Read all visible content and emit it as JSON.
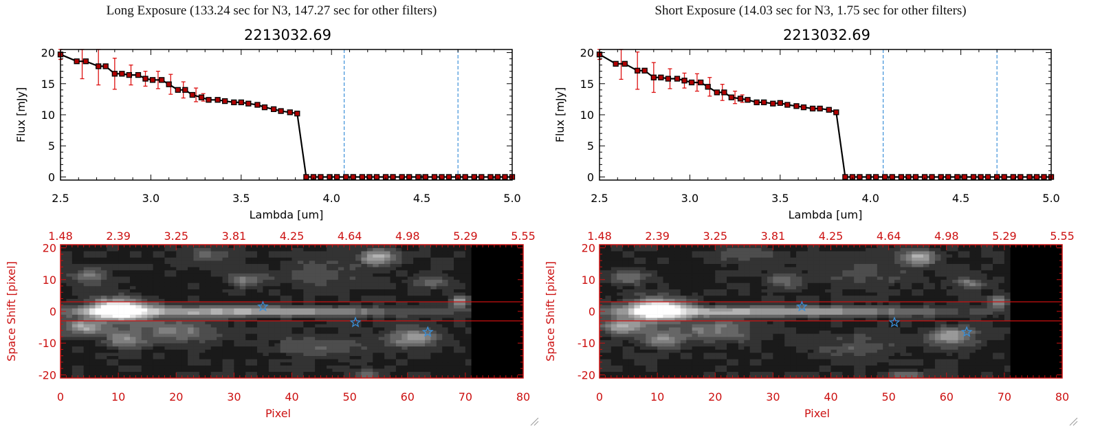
{
  "panels": [
    {
      "header": "Long Exposure (133.24 sec for N3, 147.27 sec for other filters)",
      "chart_data": [
        {
          "type": "line",
          "title": "2213032.69",
          "xlabel": "Lambda [um]",
          "ylabel": "Flux [mJy]",
          "xlim": [
            2.5,
            5.0
          ],
          "ylim": [
            -0.5,
            20.5
          ],
          "xticks": [
            "2.5",
            "3.0",
            "3.5",
            "4.0",
            "4.5",
            "5.0"
          ],
          "yticks": [
            "0",
            "5",
            "10",
            "15",
            "20"
          ],
          "vlines": [
            4.07,
            4.7
          ],
          "series": [
            {
              "x": [
                2.5,
                2.59,
                2.64,
                2.71,
                2.75,
                2.8,
                2.84,
                2.88,
                2.93,
                2.97,
                3.01,
                3.06,
                3.1,
                3.15,
                3.19,
                3.23,
                3.28,
                3.32,
                3.37,
                3.41,
                3.46,
                3.5,
                3.54,
                3.59,
                3.63,
                3.68,
                3.72,
                3.77,
                3.81,
                3.86,
                3.9,
                3.94,
                3.99,
                4.03,
                4.08,
                4.12,
                4.17,
                4.21,
                4.25,
                4.3,
                4.34,
                4.39,
                4.43,
                4.48,
                4.52,
                4.57,
                4.61,
                4.65,
                4.7,
                4.74,
                4.79,
                4.83,
                4.88,
                4.92,
                4.96,
                5.0
              ],
              "y": [
                19.7,
                18.6,
                18.6,
                17.8,
                17.8,
                16.6,
                16.6,
                16.4,
                16.4,
                15.8,
                15.6,
                15.6,
                14.9,
                14.0,
                14.0,
                13.2,
                12.8,
                12.4,
                12.4,
                12.2,
                12.0,
                12.0,
                11.8,
                11.6,
                11.2,
                10.9,
                10.6,
                10.4,
                10.2,
                0.0,
                0.0,
                0.0,
                0.0,
                0.0,
                0.0,
                0.0,
                0.0,
                0.0,
                0.0,
                0.0,
                0.0,
                0.0,
                0.0,
                0.0,
                0.0,
                0.0,
                0.0,
                0.0,
                0.0,
                0.0,
                0.0,
                0.0,
                0.0,
                0.0,
                0.0,
                0.0
              ]
            }
          ],
          "errors": [
            {
              "x": 2.5,
              "y": 19.7,
              "err": 0.8
            },
            {
              "x": 2.62,
              "y": 18.6,
              "err": 2.8
            },
            {
              "x": 2.71,
              "y": 17.8,
              "err": 3.0
            },
            {
              "x": 2.8,
              "y": 16.6,
              "err": 2.5
            },
            {
              "x": 2.89,
              "y": 16.4,
              "err": 1.6
            },
            {
              "x": 2.97,
              "y": 15.8,
              "err": 1.2
            },
            {
              "x": 3.04,
              "y": 15.6,
              "err": 1.4
            },
            {
              "x": 3.11,
              "y": 14.9,
              "err": 1.6
            },
            {
              "x": 3.18,
              "y": 14.0,
              "err": 1.3
            },
            {
              "x": 3.25,
              "y": 13.2,
              "err": 1.1
            },
            {
              "x": 3.29,
              "y": 12.8,
              "err": 0.6
            }
          ]
        },
        {
          "type": "heatmap",
          "xlabel": "Pixel",
          "ylabel": "Space Shift [pixel]",
          "xlim": [
            0,
            80
          ],
          "ylim": [
            -21,
            21
          ],
          "xticks": [
            "0",
            "10",
            "20",
            "30",
            "40",
            "50",
            "60",
            "70",
            "80"
          ],
          "yticks": [
            "20",
            "10",
            "0",
            "-10",
            "-20"
          ],
          "top_ticks": [
            "1.48",
            "2.39",
            "3.25",
            "3.81",
            "4.25",
            "4.64",
            "4.98",
            "5.29",
            "5.55"
          ],
          "hlines": [
            3,
            -3
          ],
          "stars": [
            {
              "x": 35,
              "y": 1.5
            },
            {
              "x": 51,
              "y": -3.5
            },
            {
              "x": 63.5,
              "y": -6.5
            }
          ],
          "blobs": [
            {
              "x": 10,
              "y": 0.5,
              "rx": 5,
              "ry": 3.5,
              "v": 1.0
            },
            {
              "x": 30,
              "y": 0,
              "rx": 30,
              "ry": 1.6,
              "v": 0.55
            },
            {
              "x": 4,
              "y": -5,
              "rx": 4,
              "ry": 2.5,
              "v": 0.5
            },
            {
              "x": 11,
              "y": -9,
              "rx": 3,
              "ry": 2.5,
              "v": 0.45
            },
            {
              "x": 20,
              "y": -6,
              "rx": 7,
              "ry": 3.5,
              "v": 0.35
            },
            {
              "x": 55,
              "y": 17,
              "rx": 3,
              "ry": 2.5,
              "v": 0.55
            },
            {
              "x": 61,
              "y": -8,
              "rx": 4,
              "ry": 3,
              "v": 0.5
            },
            {
              "x": 69,
              "y": 3,
              "rx": 1.5,
              "ry": 2,
              "v": 0.45
            },
            {
              "x": 5,
              "y": 11,
              "rx": 3,
              "ry": 2.5,
              "v": 0.35
            },
            {
              "x": 32,
              "y": 10,
              "rx": 3,
              "ry": 2.5,
              "v": 0.3
            },
            {
              "x": 64,
              "y": 9,
              "rx": 3,
              "ry": 2,
              "v": 0.3
            },
            {
              "x": 25,
              "y": 18,
              "rx": 5,
              "ry": 3,
              "v": 0.2
            },
            {
              "x": 53,
              "y": -20,
              "rx": 3,
              "ry": 1.5,
              "v": 0.3
            },
            {
              "x": 45,
              "y": -11,
              "rx": 8,
              "ry": 4,
              "v": 0.18
            },
            {
              "x": 45,
              "y": 12,
              "rx": 8,
              "ry": 5,
              "v": 0.16
            }
          ]
        }
      ]
    },
    {
      "header": "Short Exposure (14.03 sec for N3, 1.75 sec for other filters)",
      "chart_data": [
        {
          "type": "line",
          "title": "2213032.69",
          "xlabel": "Lambda [um]",
          "ylabel": "Flux [mJy]",
          "xlim": [
            2.5,
            5.0
          ],
          "ylim": [
            -0.5,
            20.5
          ],
          "xticks": [
            "2.5",
            "3.0",
            "3.5",
            "4.0",
            "4.5",
            "5.0"
          ],
          "yticks": [
            "0",
            "5",
            "10",
            "15",
            "20"
          ],
          "vlines": [
            4.07,
            4.7
          ],
          "series": [
            {
              "x": [
                2.5,
                2.59,
                2.64,
                2.71,
                2.75,
                2.8,
                2.84,
                2.88,
                2.93,
                2.97,
                3.01,
                3.06,
                3.1,
                3.15,
                3.19,
                3.23,
                3.28,
                3.32,
                3.37,
                3.41,
                3.46,
                3.5,
                3.54,
                3.59,
                3.63,
                3.68,
                3.72,
                3.77,
                3.81,
                3.86,
                3.9,
                3.94,
                3.99,
                4.03,
                4.08,
                4.12,
                4.17,
                4.21,
                4.25,
                4.3,
                4.34,
                4.39,
                4.43,
                4.48,
                4.52,
                4.57,
                4.61,
                4.65,
                4.7,
                4.74,
                4.79,
                4.83,
                4.88,
                4.92,
                4.96,
                5.0
              ],
              "y": [
                19.7,
                18.2,
                18.2,
                17.1,
                17.1,
                16.0,
                16.0,
                15.8,
                15.8,
                15.5,
                15.2,
                15.2,
                14.5,
                13.6,
                13.6,
                12.8,
                12.6,
                12.4,
                12.0,
                12.0,
                11.8,
                11.9,
                11.6,
                11.4,
                11.2,
                11.0,
                11.0,
                10.8,
                10.4,
                0.0,
                0.0,
                0.0,
                0.0,
                0.0,
                0.0,
                0.0,
                0.0,
                0.0,
                0.0,
                0.0,
                0.0,
                0.0,
                0.0,
                0.0,
                0.0,
                0.0,
                0.0,
                0.0,
                0.0,
                0.0,
                0.0,
                0.0,
                0.0,
                0.0,
                0.0,
                0.0
              ]
            }
          ],
          "errors": [
            {
              "x": 2.5,
              "y": 19.7,
              "err": 0.8
            },
            {
              "x": 2.62,
              "y": 18.2,
              "err": 2.5
            },
            {
              "x": 2.71,
              "y": 17.1,
              "err": 3.0
            },
            {
              "x": 2.8,
              "y": 16.0,
              "err": 2.4
            },
            {
              "x": 2.89,
              "y": 15.8,
              "err": 1.6
            },
            {
              "x": 2.97,
              "y": 15.5,
              "err": 1.2
            },
            {
              "x": 3.04,
              "y": 15.2,
              "err": 1.4
            },
            {
              "x": 3.11,
              "y": 14.5,
              "err": 1.5
            },
            {
              "x": 3.18,
              "y": 13.6,
              "err": 1.3
            },
            {
              "x": 3.25,
              "y": 12.8,
              "err": 1.0
            },
            {
              "x": 3.29,
              "y": 12.6,
              "err": 0.6
            }
          ]
        },
        {
          "type": "heatmap",
          "xlabel": "Pixel",
          "ylabel": "Space Shift [pixel]",
          "xlim": [
            0,
            80
          ],
          "ylim": [
            -21,
            21
          ],
          "xticks": [
            "0",
            "10",
            "20",
            "30",
            "40",
            "50",
            "60",
            "70",
            "80"
          ],
          "yticks": [
            "20",
            "10",
            "0",
            "-10",
            "-20"
          ],
          "top_ticks": [
            "1.48",
            "2.39",
            "3.25",
            "3.81",
            "4.25",
            "4.64",
            "4.98",
            "5.29",
            "5.55"
          ],
          "hlines": [
            3,
            -3
          ],
          "stars": [
            {
              "x": 35,
              "y": 1.5
            },
            {
              "x": 51,
              "y": -3.5
            },
            {
              "x": 63.5,
              "y": -6.5
            }
          ],
          "blobs": [
            {
              "x": 10,
              "y": 0.5,
              "rx": 5,
              "ry": 3.5,
              "v": 1.0
            },
            {
              "x": 30,
              "y": 0,
              "rx": 30,
              "ry": 1.6,
              "v": 0.55
            },
            {
              "x": 4,
              "y": -5,
              "rx": 4,
              "ry": 2.5,
              "v": 0.5
            },
            {
              "x": 11,
              "y": -9,
              "rx": 3,
              "ry": 2.5,
              "v": 0.45
            },
            {
              "x": 20,
              "y": -6,
              "rx": 7,
              "ry": 3.5,
              "v": 0.35
            },
            {
              "x": 55,
              "y": 17,
              "rx": 3,
              "ry": 2.5,
              "v": 0.55
            },
            {
              "x": 61,
              "y": -8,
              "rx": 4,
              "ry": 3,
              "v": 0.5
            },
            {
              "x": 69,
              "y": 3,
              "rx": 1.5,
              "ry": 2,
              "v": 0.45
            },
            {
              "x": 5,
              "y": 11,
              "rx": 3,
              "ry": 2.5,
              "v": 0.35
            },
            {
              "x": 32,
              "y": 10,
              "rx": 3,
              "ry": 2.5,
              "v": 0.3
            },
            {
              "x": 64,
              "y": 9,
              "rx": 3,
              "ry": 2,
              "v": 0.3
            },
            {
              "x": 25,
              "y": 18,
              "rx": 5,
              "ry": 3,
              "v": 0.2
            },
            {
              "x": 53,
              "y": -20,
              "rx": 3,
              "ry": 1.5,
              "v": 0.3
            },
            {
              "x": 45,
              "y": -11,
              "rx": 8,
              "ry": 4,
              "v": 0.18
            },
            {
              "x": 45,
              "y": 12,
              "rx": 8,
              "ry": 5,
              "v": 0.16
            }
          ]
        }
      ]
    }
  ],
  "colors": {
    "axis_red": "#cc1111",
    "error_bar": "#dd1111",
    "marker": "#b00000",
    "vline": "#3a8fd8",
    "star": "#3a8fd8",
    "hline": "#cc1111"
  }
}
